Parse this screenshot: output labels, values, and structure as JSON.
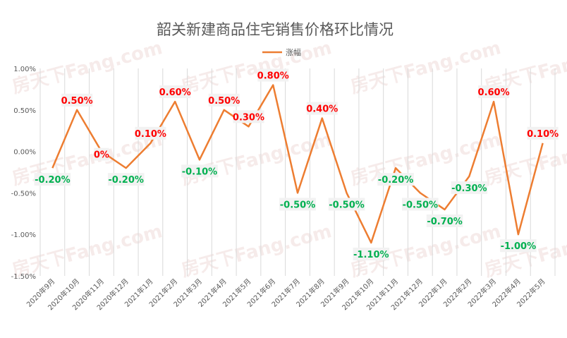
{
  "chart_data": {
    "type": "line",
    "title": "韶关新建商品住宅销售价格环比情况",
    "xlabel": "",
    "ylabel": "",
    "categories": [
      "2020年9月",
      "2020年10月",
      "2020年11月",
      "2020年12月",
      "2021年1月",
      "2021年2月",
      "2021年3月",
      "2021年4月",
      "2021年5月",
      "2021年6月",
      "2021年7月",
      "2021年8月",
      "2021年9月",
      "2021年10月",
      "2021年11月",
      "2021年12月",
      "2022年1月",
      "2022年2月",
      "2022年3月",
      "2022年4月",
      "2022年5月"
    ],
    "series": [
      {
        "name": "涨幅",
        "values": [
          -0.2,
          0.5,
          0.0,
          -0.2,
          0.1,
          0.6,
          -0.1,
          0.5,
          0.3,
          0.8,
          -0.5,
          0.4,
          -0.5,
          -1.1,
          -0.2,
          -0.5,
          -0.7,
          -0.3,
          0.6,
          -1.0,
          0.1
        ]
      }
    ],
    "data_labels": [
      "-0.20%",
      "0.50%",
      "0%",
      "-0.20%",
      "0.10%",
      "0.60%",
      "-0.10%",
      "0.50%",
      "0.30%",
      "0.80%",
      "-0.50%",
      "0.40%",
      "-0.50%",
      "-1.10%",
      "-0.20%",
      "-0.50%",
      "-0.70%",
      "-0.30%",
      "0.60%",
      "-1.00%",
      "0.10%"
    ],
    "y_ticks": [
      "1.00%",
      "0.50%",
      "0.00%",
      "-0.50%",
      "-1.00%",
      "-1.50%"
    ],
    "y_tick_values": [
      1.0,
      0.5,
      0.0,
      -0.5,
      -1.0,
      -1.5
    ],
    "ylim": [
      -1.5,
      1.0
    ],
    "grid": "vertical category lines",
    "legend_position": "top-center",
    "colors": {
      "line": "#ED7D31",
      "positive_label": "#FF0000",
      "negative_label": "#00B050",
      "label_box": "#F2F2F2",
      "grid": "#D9D9D9"
    }
  },
  "watermark": "房天下Fang.com"
}
